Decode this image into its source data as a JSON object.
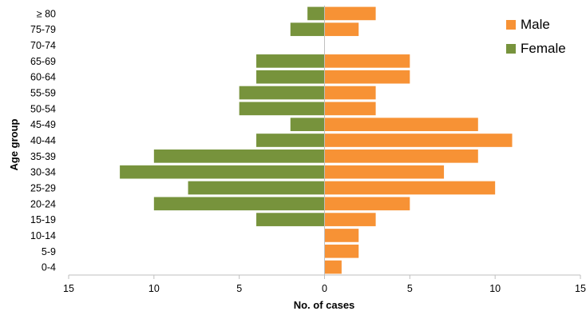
{
  "chart_data": {
    "type": "bar",
    "orientation": "horizontal",
    "layout": "population-pyramid",
    "categories": [
      "0-4",
      "5-9",
      "10-14",
      "15-19",
      "20-24",
      "25-29",
      "30-34",
      "35-39",
      "40-44",
      "45-49",
      "50-54",
      "55-59",
      "60-64",
      "65-69",
      "70-74",
      "75-79",
      "≥ 80"
    ],
    "series": [
      {
        "name": "Male",
        "side": "right",
        "color": "#f79235",
        "values": [
          1,
          2,
          2,
          3,
          5,
          10,
          7,
          9,
          11,
          9,
          3,
          3,
          5,
          5,
          0,
          2,
          3
        ]
      },
      {
        "name": "Female",
        "side": "left",
        "color": "#77933c",
        "values": [
          0,
          0,
          0,
          4,
          10,
          8,
          12,
          10,
          4,
          2,
          5,
          5,
          4,
          4,
          0,
          2,
          1
        ]
      }
    ],
    "xlim": [
      -15,
      15
    ],
    "xticks": [
      -15,
      -10,
      -5,
      0,
      5,
      10,
      15
    ],
    "xtick_labels": [
      "15",
      "10",
      "5",
      "0",
      "5",
      "10",
      "15"
    ],
    "xlabel": "No. of cases",
    "ylabel": "Age group",
    "grid": false,
    "legend": {
      "position": "top-right",
      "entries": [
        "Male",
        "Female"
      ]
    }
  }
}
